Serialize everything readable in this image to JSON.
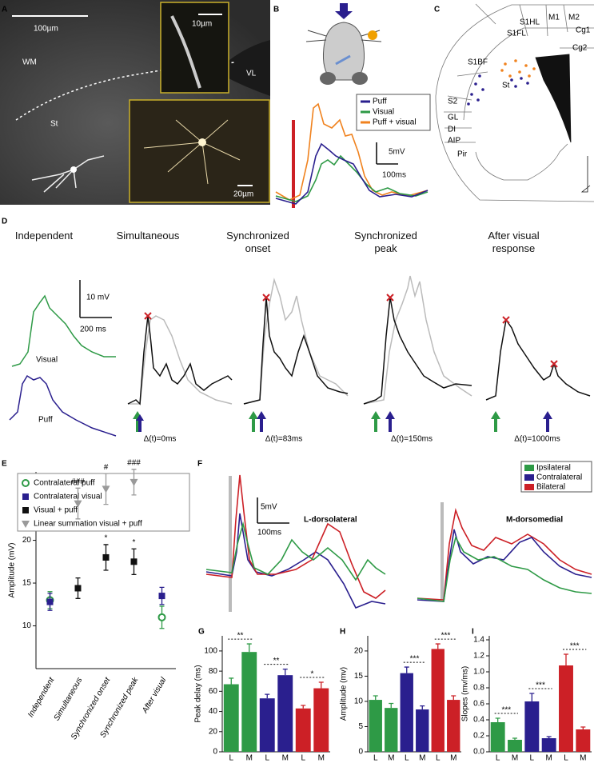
{
  "panel_labels": [
    "A",
    "B",
    "C",
    "D",
    "E",
    "F",
    "G",
    "H",
    "I"
  ],
  "panel_a": {
    "scale_bar": "100µm",
    "inset_scale_top": "10µm",
    "inset_scale_bottom": "20µm",
    "region_wm": "WM",
    "region_vl": "VL",
    "region_st": "St"
  },
  "panel_b": {
    "legend": [
      {
        "name": "Puff",
        "color": "#2a1f8e"
      },
      {
        "name": "Visual",
        "color": "#2e9a46"
      },
      {
        "name": "Puff + visual",
        "color": "#f0821e"
      }
    ],
    "scale_y": "5mV",
    "scale_x": "100ms"
  },
  "panel_c": {
    "regions": [
      "S1HL",
      "M1",
      "M2",
      "Cg1",
      "Cg2",
      "S1FL",
      "S1BF",
      "S2",
      "St",
      "GL",
      "DI",
      "AIP",
      "Pir"
    ]
  },
  "panel_d": {
    "conditions": [
      "Independent",
      "Simultaneous",
      "Synchronized onset",
      "Synchronized peak",
      "After visual response"
    ],
    "scale_y": "10 mV",
    "scale_x": "200 ms",
    "trace_labels": [
      "Visual",
      "Puff"
    ],
    "delays": [
      "Δ(t)=0ms",
      "Δ(t)=83ms",
      "Δ(t)=150ms",
      "Δ(t)=1000ms"
    ]
  },
  "panel_f": {
    "legend": [
      {
        "name": "Ipsilateral",
        "color": "#2e9a46"
      },
      {
        "name": "Contralateral",
        "color": "#2a1f8e"
      },
      {
        "name": "Bilateral",
        "color": "#cc2026"
      }
    ],
    "scale_y": "5mV",
    "scale_x": "100ms",
    "titles": [
      "L-dorsolateral",
      "M-dorsomedial"
    ]
  },
  "chart_data": [
    {
      "type": "scatter",
      "ylabel": "Amplitude (mV)",
      "categories": [
        "Independent",
        "Simultaneous",
        "Synchronized onset",
        "Synchronized peak",
        "After visual"
      ],
      "ylim": [
        5,
        28
      ],
      "yticks": [
        10,
        15,
        20,
        25
      ],
      "series": [
        {
          "name": "Contralateral puff",
          "color": "#2e9a46",
          "marker": "circle-open",
          "values": [
            13,
            null,
            null,
            null,
            11
          ],
          "errors": [
            1,
            null,
            null,
            null,
            1.3
          ]
        },
        {
          "name": "Contralateral visual",
          "color": "#2a1f8e",
          "marker": "square",
          "values": [
            12.8,
            null,
            null,
            null,
            13.5
          ],
          "errors": [
            1,
            null,
            null,
            null,
            1
          ]
        },
        {
          "name": "Visual + puff",
          "color": "#111111",
          "marker": "square",
          "values": [
            null,
            14.4,
            18,
            17.5,
            null
          ],
          "errors": [
            null,
            1.2,
            1.5,
            1.5,
            null
          ]
        },
        {
          "name": "Linear summation visual + puff",
          "color": "#9a9a9a",
          "marker": "triangle-down",
          "values": [
            null,
            24.3,
            26,
            26.8,
            null
          ],
          "errors": [
            null,
            1.8,
            1.8,
            1.5,
            null
          ]
        }
      ],
      "annotations": [
        "###",
        "#",
        "###",
        "*",
        "*"
      ]
    },
    {
      "type": "bar",
      "ylabel": "Peak delay (ms)",
      "categories": [
        "L",
        "M",
        "L",
        "M",
        "L",
        "M"
      ],
      "values": [
        67,
        99,
        53,
        76,
        43,
        63
      ],
      "errors": [
        6,
        8,
        4,
        6,
        3,
        6
      ],
      "colors": [
        "#2e9a46",
        "#2e9a46",
        "#2a1f8e",
        "#2a1f8e",
        "#cc2026",
        "#cc2026"
      ],
      "ylim": [
        0,
        115
      ],
      "yticks": [
        0,
        20,
        40,
        60,
        80,
        100
      ],
      "annotations": [
        "**",
        "**",
        "*"
      ]
    },
    {
      "type": "bar",
      "ylabel": "Amplitude (mv)",
      "categories": [
        "L",
        "M",
        "L",
        "M",
        "L",
        "M"
      ],
      "values": [
        10.3,
        8.7,
        15.6,
        8.4,
        20.4,
        10.3
      ],
      "errors": [
        0.8,
        0.9,
        1.2,
        0.7,
        1,
        0.8
      ],
      "colors": [
        "#2e9a46",
        "#2e9a46",
        "#2a1f8e",
        "#2a1f8e",
        "#cc2026",
        "#cc2026"
      ],
      "ylim": [
        0,
        23
      ],
      "yticks": [
        0,
        5,
        10,
        15,
        20
      ],
      "annotations": [
        "***",
        "***"
      ]
    },
    {
      "type": "bar",
      "ylabel": "Slopes (mv/ms)",
      "categories": [
        "L",
        "M",
        "L",
        "M",
        "L",
        "M"
      ],
      "values": [
        0.37,
        0.15,
        0.63,
        0.17,
        1.08,
        0.28
      ],
      "errors": [
        0.05,
        0.02,
        0.1,
        0.02,
        0.14,
        0.03
      ],
      "colors": [
        "#2e9a46",
        "#2e9a46",
        "#2a1f8e",
        "#2a1f8e",
        "#cc2026",
        "#cc2026"
      ],
      "ylim": [
        0,
        1.45
      ],
      "yticks": [
        {
          "value": 0,
          "label": "0.0"
        },
        0.2,
        0.4,
        0.6,
        0.8,
        {
          "value": 1,
          "label": "1.0"
        },
        1.2,
        1.4
      ],
      "annotations": [
        "***",
        "***",
        "***"
      ]
    }
  ]
}
